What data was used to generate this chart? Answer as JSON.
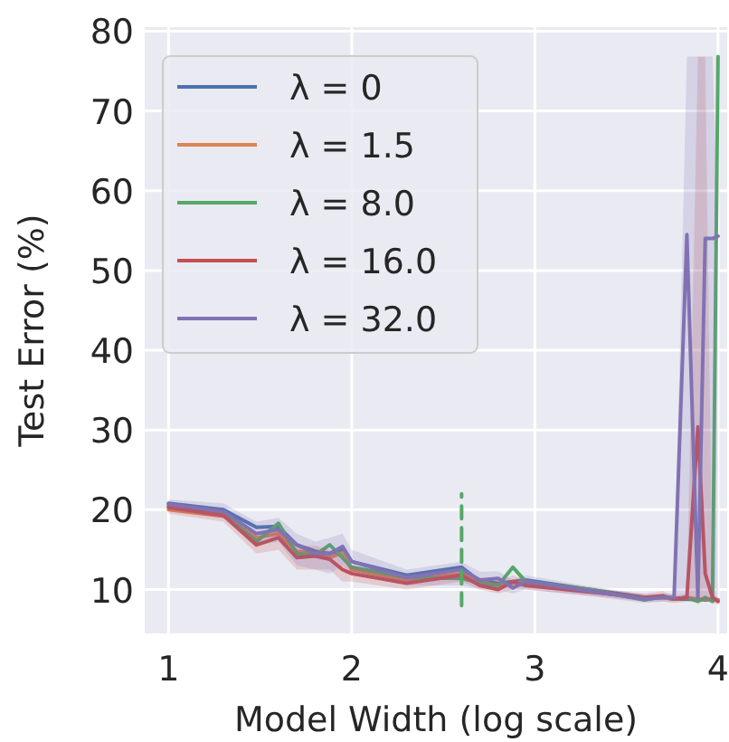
{
  "chart_data": {
    "type": "line",
    "xlabel": "Model Width (log scale)",
    "ylabel": "Test Error (%)",
    "xlim": [
      0.87,
      4.05
    ],
    "ylim": [
      4.5,
      80.5
    ],
    "xticks": [
      1,
      2,
      3,
      4
    ],
    "yticks": [
      10,
      20,
      30,
      40,
      50,
      60,
      70,
      80
    ],
    "grid": true,
    "legend": "top left",
    "marker": "none",
    "line_style": "solid",
    "x": [
      1,
      1.3,
      1.48,
      1.6,
      1.7,
      1.8,
      1.88,
      1.95,
      2.0,
      2.3,
      2.6,
      2.7,
      2.8,
      2.88,
      2.95,
      3.3,
      3.6,
      3.7,
      3.76,
      3.83,
      3.89,
      3.93,
      3.97,
      4.0
    ],
    "series": [
      {
        "name": "λ = 0",
        "color": "#4c72b0",
        "values": [
          20.8,
          20.0,
          17.8,
          17.9,
          15.6,
          14.8,
          14.5,
          15.0,
          13.5,
          11.8,
          12.8,
          11.0,
          10.8,
          11.0,
          11.2,
          10.0,
          9.0,
          9.0,
          8.8,
          8.8,
          8.8,
          8.7,
          8.8,
          8.7
        ]
      },
      {
        "name": "λ = 1.5",
        "color": "#dd8452",
        "values": [
          20.0,
          19.2,
          16.5,
          17.0,
          14.8,
          14.5,
          14.0,
          14.6,
          12.5,
          11.2,
          12.0,
          11.0,
          10.5,
          10.8,
          11.0,
          9.8,
          8.8,
          9.0,
          8.8,
          9.0,
          8.8,
          8.8,
          8.7,
          8.7
        ]
      },
      {
        "name": "λ = 8.0",
        "color": "#55a868",
        "values": [
          20.5,
          19.5,
          16.0,
          18.3,
          14.5,
          14.3,
          15.6,
          14.0,
          12.8,
          11.5,
          11.4,
          10.8,
          10.5,
          12.8,
          11.0,
          10.0,
          8.7,
          9.2,
          8.8,
          9.0,
          8.5,
          9.0,
          8.5,
          76.8
        ]
      },
      {
        "name": "λ = 16.0",
        "color": "#c44e52",
        "values": [
          20.3,
          19.3,
          15.6,
          16.5,
          14.0,
          14.2,
          13.8,
          12.5,
          12.0,
          10.8,
          11.8,
          10.5,
          10.0,
          11.0,
          10.5,
          9.7,
          9.0,
          9.2,
          8.8,
          9.0,
          30.4,
          12.0,
          9.0,
          8.5
        ],
        "lower": [
          19.5,
          18.5,
          14.5,
          15.0,
          12.5,
          12.5,
          12.5,
          11.0,
          11.0,
          10.0,
          11.0,
          10.0,
          9.5,
          10.0,
          10.0,
          9.2,
          8.5,
          8.5,
          8.3,
          8.5,
          8.5,
          8.5,
          8.5,
          8.0
        ],
        "upper": [
          21.0,
          20.0,
          16.5,
          17.5,
          15.5,
          15.5,
          15.0,
          14.0,
          13.0,
          11.5,
          12.5,
          11.2,
          11.0,
          11.8,
          11.2,
          10.2,
          9.5,
          9.8,
          9.3,
          9.5,
          76.8,
          76.8,
          9.5,
          9.0
        ]
      },
      {
        "name": "λ = 32.0",
        "color": "#8172b3",
        "values": [
          20.7,
          19.8,
          17.0,
          17.5,
          15.6,
          14.5,
          14.5,
          15.4,
          13.5,
          11.5,
          12.5,
          11.2,
          11.4,
          10.2,
          11.0,
          9.8,
          8.8,
          9.0,
          9.0,
          54.5,
          9.0,
          54.0,
          54.0,
          54.3
        ],
        "lower": [
          20.0,
          19.0,
          15.5,
          16.0,
          13.0,
          12.5,
          12.0,
          13.0,
          12.0,
          10.5,
          10.5,
          10.0,
          10.0,
          9.5,
          10.0,
          9.2,
          8.3,
          8.5,
          8.5,
          8.5,
          8.5,
          8.5,
          8.5,
          8.5
        ],
        "upper": [
          21.3,
          20.8,
          18.5,
          19.0,
          17.0,
          16.0,
          16.5,
          17.0,
          15.0,
          12.5,
          13.5,
          12.2,
          12.3,
          11.2,
          11.8,
          10.4,
          9.4,
          9.5,
          9.5,
          76.8,
          76.8,
          76.8,
          76.8,
          55.0
        ]
      },
      {
        "type": "line",
        "x": [
          2.6,
          2.6
        ],
        "values": [
          8,
          22
        ],
        "color": "#55a868",
        "line_style": "dashed"
      }
    ]
  }
}
